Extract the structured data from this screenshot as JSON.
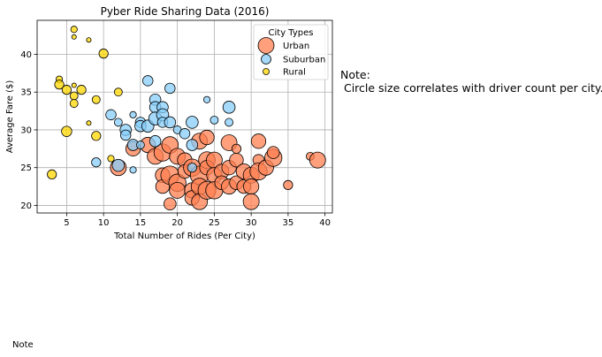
{
  "chart_data": {
    "type": "scatter",
    "title": "Pyber Ride Sharing Data (2016)",
    "xlabel": "Total Number of Rides (Per City)",
    "ylabel": "Average Fare ($)",
    "xlim": [
      1,
      41
    ],
    "ylim": [
      19,
      44.5
    ],
    "xticks": [
      5,
      10,
      15,
      20,
      25,
      30,
      35,
      40
    ],
    "yticks": [
      20,
      25,
      30,
      35,
      40
    ],
    "grid": true,
    "legend_title": "City Types",
    "legend_position": "top-right",
    "size_encoding": "driver count per city",
    "series": [
      {
        "name": "Urban",
        "color": "#FF7F50",
        "points": [
          {
            "x": 12,
            "y": 25,
            "s": 12
          },
          {
            "x": 14,
            "y": 27.5,
            "s": 10
          },
          {
            "x": 16,
            "y": 28,
            "s": 11
          },
          {
            "x": 17,
            "y": 26.5,
            "s": 12
          },
          {
            "x": 18,
            "y": 27,
            "s": 14
          },
          {
            "x": 18,
            "y": 24,
            "s": 10
          },
          {
            "x": 18,
            "y": 22.5,
            "s": 9
          },
          {
            "x": 19,
            "y": 28,
            "s": 13
          },
          {
            "x": 19,
            "y": 20.2,
            "s": 7
          },
          {
            "x": 19,
            "y": 24,
            "s": 16
          },
          {
            "x": 20,
            "y": 26.5,
            "s": 12
          },
          {
            "x": 20,
            "y": 23,
            "s": 14
          },
          {
            "x": 20,
            "y": 22,
            "s": 12
          },
          {
            "x": 21,
            "y": 26,
            "s": 10
          },
          {
            "x": 21,
            "y": 24.5,
            "s": 9
          },
          {
            "x": 22,
            "y": 22,
            "s": 11
          },
          {
            "x": 22,
            "y": 25,
            "s": 14
          },
          {
            "x": 22,
            "y": 21,
            "s": 10
          },
          {
            "x": 23,
            "y": 28.5,
            "s": 12
          },
          {
            "x": 23,
            "y": 24,
            "s": 16
          },
          {
            "x": 23,
            "y": 22.5,
            "s": 13
          },
          {
            "x": 23,
            "y": 20.5,
            "s": 12
          },
          {
            "x": 24,
            "y": 29,
            "s": 10
          },
          {
            "x": 24,
            "y": 26,
            "s": 13
          },
          {
            "x": 24,
            "y": 25,
            "s": 10
          },
          {
            "x": 24,
            "y": 22,
            "s": 15
          },
          {
            "x": 25,
            "y": 26,
            "s": 12
          },
          {
            "x": 25,
            "y": 24,
            "s": 11
          },
          {
            "x": 25,
            "y": 22,
            "s": 14
          },
          {
            "x": 26,
            "y": 24.5,
            "s": 10
          },
          {
            "x": 26,
            "y": 23,
            "s": 9
          },
          {
            "x": 27,
            "y": 28.3,
            "s": 12
          },
          {
            "x": 27,
            "y": 25,
            "s": 10
          },
          {
            "x": 27,
            "y": 22.5,
            "s": 11
          },
          {
            "x": 28,
            "y": 27.5,
            "s": 4
          },
          {
            "x": 28,
            "y": 26,
            "s": 9
          },
          {
            "x": 28,
            "y": 23,
            "s": 9
          },
          {
            "x": 29,
            "y": 24.5,
            "s": 11
          },
          {
            "x": 29,
            "y": 22.5,
            "s": 9
          },
          {
            "x": 30,
            "y": 24,
            "s": 12
          },
          {
            "x": 30,
            "y": 22.5,
            "s": 11
          },
          {
            "x": 30,
            "y": 20.5,
            "s": 12
          },
          {
            "x": 31,
            "y": 28.5,
            "s": 10
          },
          {
            "x": 31,
            "y": 26,
            "s": 6
          },
          {
            "x": 31,
            "y": 24.5,
            "s": 14
          },
          {
            "x": 32,
            "y": 25,
            "s": 11
          },
          {
            "x": 33,
            "y": 26.3,
            "s": 14
          },
          {
            "x": 33,
            "y": 27,
            "s": 7
          },
          {
            "x": 35,
            "y": 22.7,
            "s": 4
          },
          {
            "x": 38,
            "y": 26.5,
            "s": 3
          },
          {
            "x": 39,
            "y": 26,
            "s": 12
          }
        ]
      },
      {
        "name": "Suburban",
        "color": "#87CEFA",
        "points": [
          {
            "x": 9,
            "y": 25.7,
            "s": 4
          },
          {
            "x": 11,
            "y": 32,
            "s": 5
          },
          {
            "x": 12,
            "y": 31,
            "s": 3
          },
          {
            "x": 12,
            "y": 25.3,
            "s": 7
          },
          {
            "x": 13,
            "y": 30,
            "s": 6
          },
          {
            "x": 13,
            "y": 29.3,
            "s": 5
          },
          {
            "x": 14,
            "y": 32,
            "s": 2
          },
          {
            "x": 14,
            "y": 28,
            "s": 6
          },
          {
            "x": 14,
            "y": 24.7,
            "s": 2
          },
          {
            "x": 15,
            "y": 31,
            "s": 5
          },
          {
            "x": 15,
            "y": 30.5,
            "s": 6
          },
          {
            "x": 15,
            "y": 28,
            "s": 3
          },
          {
            "x": 16,
            "y": 36.5,
            "s": 5
          },
          {
            "x": 16,
            "y": 30.5,
            "s": 7
          },
          {
            "x": 17,
            "y": 34,
            "s": 6
          },
          {
            "x": 17,
            "y": 33,
            "s": 6
          },
          {
            "x": 17,
            "y": 31.5,
            "s": 8
          },
          {
            "x": 17,
            "y": 28.5,
            "s": 6
          },
          {
            "x": 18,
            "y": 33,
            "s": 6
          },
          {
            "x": 18,
            "y": 32,
            "s": 7
          },
          {
            "x": 18,
            "y": 31,
            "s": 5
          },
          {
            "x": 19,
            "y": 35.5,
            "s": 5
          },
          {
            "x": 19,
            "y": 31,
            "s": 6
          },
          {
            "x": 20,
            "y": 30,
            "s": 3
          },
          {
            "x": 21,
            "y": 29.5,
            "s": 5
          },
          {
            "x": 22,
            "y": 31,
            "s": 7
          },
          {
            "x": 22,
            "y": 28,
            "s": 6
          },
          {
            "x": 22,
            "y": 25,
            "s": 4
          },
          {
            "x": 24,
            "y": 34,
            "s": 2
          },
          {
            "x": 25,
            "y": 31.3,
            "s": 3
          },
          {
            "x": 27,
            "y": 33,
            "s": 7
          },
          {
            "x": 27,
            "y": 31,
            "s": 3
          }
        ]
      },
      {
        "name": "Rural",
        "color": "#FFD700",
        "points": [
          {
            "x": 3,
            "y": 24.1,
            "s": 4
          },
          {
            "x": 4,
            "y": 36.7,
            "s": 2
          },
          {
            "x": 4,
            "y": 36,
            "s": 4
          },
          {
            "x": 5,
            "y": 35.3,
            "s": 4
          },
          {
            "x": 5,
            "y": 29.8,
            "s": 5
          },
          {
            "x": 6,
            "y": 43.3,
            "s": 2
          },
          {
            "x": 6,
            "y": 42.3,
            "s": 1
          },
          {
            "x": 6,
            "y": 35.9,
            "s": 1
          },
          {
            "x": 6,
            "y": 34.5,
            "s": 3
          },
          {
            "x": 6,
            "y": 33.5,
            "s": 3
          },
          {
            "x": 7,
            "y": 35.3,
            "s": 4
          },
          {
            "x": 8,
            "y": 41.9,
            "s": 1
          },
          {
            "x": 8,
            "y": 30.9,
            "s": 1
          },
          {
            "x": 9,
            "y": 34,
            "s": 3
          },
          {
            "x": 9,
            "y": 29.2,
            "s": 4
          },
          {
            "x": 10,
            "y": 40.1,
            "s": 4
          },
          {
            "x": 11,
            "y": 26.2,
            "s": 2
          },
          {
            "x": 12,
            "y": 35,
            "s": 3
          }
        ]
      }
    ]
  },
  "note": {
    "text": "Note:\n Circle size correlates with driver count per city."
  },
  "footer": {
    "note_label": "Note"
  }
}
